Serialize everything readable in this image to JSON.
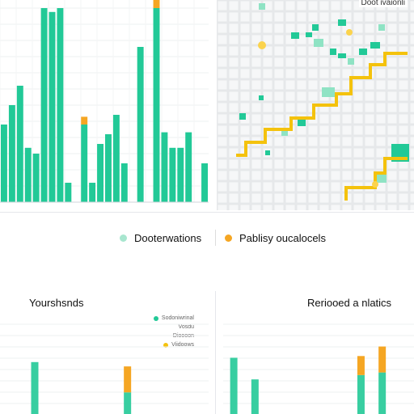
{
  "colors": {
    "green": "#22c997",
    "green_light": "#8fe3c4",
    "orange": "#f5a623",
    "yellow": "#f4c20d",
    "grid": "#eef0f2",
    "map_bg": "#f3f4f5"
  },
  "legend": {
    "items": [
      {
        "label": "Dooterwations",
        "color": "#a8e6cf"
      },
      {
        "label": "Pablisy oucalocels",
        "color": "#f5a623"
      }
    ]
  },
  "map": {
    "title": "Doot ivaionli"
  },
  "chart_data": [
    {
      "type": "bar",
      "title": "",
      "xlabel": "",
      "ylabel": "",
      "ylim": [
        0,
        100
      ],
      "series": [
        {
          "color": "#22c997",
          "values": [
            40,
            50,
            60,
            28,
            25,
            100,
            98,
            100,
            10,
            0,
            40,
            10,
            30,
            35,
            45,
            20,
            0,
            80,
            0,
            100,
            36,
            28,
            28,
            36,
            0,
            20
          ]
        },
        {
          "color": "#f5a623",
          "values": [
            0,
            0,
            0,
            0,
            0,
            0,
            0,
            0,
            0,
            0,
            4,
            0,
            0,
            0,
            0,
            0,
            0,
            0,
            0,
            44,
            0,
            0,
            0,
            0,
            0,
            0
          ]
        }
      ]
    },
    {
      "type": "bar",
      "title": "Yourshsnds",
      "legend": [
        "Sodoniwrinal",
        "Vosdu",
        "Dioooon",
        "Viidoows"
      ],
      "series": [
        {
          "color": "#22c997",
          "values": [
            0,
            60,
            0,
            0,
            0,
            25,
            0,
            0,
            0
          ]
        },
        {
          "color": "#f5a623",
          "values": [
            0,
            0,
            0,
            0,
            0,
            30,
            0,
            0,
            0
          ]
        }
      ]
    },
    {
      "type": "bar",
      "title": "Reriooed a nlatics",
      "series": [
        {
          "color": "#22c997",
          "values": [
            65,
            40,
            0,
            0,
            0,
            0,
            45,
            48,
            0
          ]
        },
        {
          "color": "#f5a623",
          "values": [
            0,
            0,
            0,
            0,
            0,
            0,
            22,
            30,
            0
          ]
        }
      ]
    }
  ]
}
